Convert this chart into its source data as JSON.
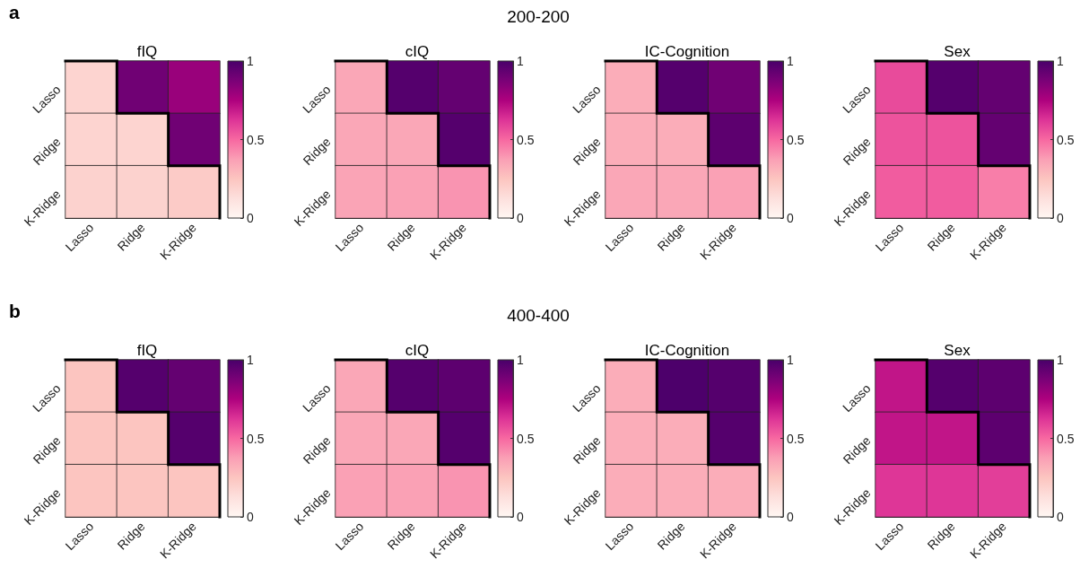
{
  "chart_data": [
    {
      "type": "heatmap",
      "title": "fIQ",
      "annotations": [
        "a",
        "200-200"
      ],
      "categories": [
        "Lasso",
        "Ridge",
        "K-Ridge"
      ],
      "y_categories": [
        "Lasso",
        "Ridge",
        "K-Ridge"
      ],
      "cells": [
        [
          0.18,
          0.9,
          0.8
        ],
        [
          0.18,
          0.18,
          0.9
        ],
        [
          0.19,
          0.19,
          0.22
        ]
      ],
      "clim": [
        0,
        1
      ],
      "cticks": [
        0,
        0.5,
        1
      ]
    },
    {
      "type": "heatmap",
      "title": "cIQ",
      "categories": [
        "Lasso",
        "Ridge",
        "K-Ridge"
      ],
      "y_categories": [
        "Lasso",
        "Ridge",
        "K-Ridge"
      ],
      "cells": [
        [
          0.35,
          0.97,
          0.93
        ],
        [
          0.35,
          0.35,
          0.97
        ],
        [
          0.36,
          0.37,
          0.4
        ]
      ],
      "clim": [
        0,
        1
      ],
      "cticks": [
        0,
        0.5,
        1
      ]
    },
    {
      "type": "heatmap",
      "title": "IC-Cognition",
      "categories": [
        "Lasso",
        "Ridge",
        "K-Ridge"
      ],
      "y_categories": [
        "Lasso",
        "Ridge",
        "K-Ridge"
      ],
      "cells": [
        [
          0.33,
          0.97,
          0.9
        ],
        [
          0.33,
          0.33,
          0.95
        ],
        [
          0.35,
          0.35,
          0.37
        ]
      ],
      "clim": [
        0,
        1
      ],
      "cticks": [
        0,
        0.5,
        1
      ]
    },
    {
      "type": "heatmap",
      "title": "Sex",
      "categories": [
        "Lasso",
        "Ridge",
        "K-Ridge"
      ],
      "y_categories": [
        "Lasso",
        "Ridge",
        "K-Ridge"
      ],
      "cells": [
        [
          0.57,
          0.97,
          0.93
        ],
        [
          0.55,
          0.55,
          0.93
        ],
        [
          0.53,
          0.53,
          0.45
        ]
      ],
      "clim": [
        0,
        1
      ],
      "cticks": [
        0,
        0.5,
        1
      ]
    },
    {
      "type": "heatmap",
      "title": "fIQ",
      "annotations": [
        "b",
        "400-400"
      ],
      "categories": [
        "Lasso",
        "Ridge",
        "K-Ridge"
      ],
      "y_categories": [
        "Lasso",
        "Ridge",
        "K-Ridge"
      ],
      "cells": [
        [
          0.25,
          0.97,
          0.93
        ],
        [
          0.25,
          0.25,
          0.97
        ],
        [
          0.25,
          0.25,
          0.25
        ]
      ],
      "clim": [
        0,
        1
      ],
      "cticks": [
        0,
        0.5,
        1
      ]
    },
    {
      "type": "heatmap",
      "title": "cIQ",
      "categories": [
        "Lasso",
        "Ridge",
        "K-Ridge"
      ],
      "y_categories": [
        "Lasso",
        "Ridge",
        "K-Ridge"
      ],
      "cells": [
        [
          0.35,
          0.97,
          0.95
        ],
        [
          0.35,
          0.35,
          0.97
        ],
        [
          0.37,
          0.37,
          0.4
        ]
      ],
      "clim": [
        0,
        1
      ],
      "cticks": [
        0,
        0.5,
        1
      ]
    },
    {
      "type": "heatmap",
      "title": "IC-Cognition",
      "categories": [
        "Lasso",
        "Ridge",
        "K-Ridge"
      ],
      "y_categories": [
        "Lasso",
        "Ridge",
        "K-Ridge"
      ],
      "cells": [
        [
          0.33,
          0.99,
          0.97
        ],
        [
          0.33,
          0.33,
          0.97
        ],
        [
          0.33,
          0.33,
          0.33
        ]
      ],
      "clim": [
        0,
        1
      ],
      "cticks": [
        0,
        0.5,
        1
      ]
    },
    {
      "type": "heatmap",
      "title": "Sex",
      "categories": [
        "Lasso",
        "Ridge",
        "K-Ridge"
      ],
      "y_categories": [
        "Lasso",
        "Ridge",
        "K-Ridge"
      ],
      "cells": [
        [
          0.7,
          0.97,
          0.95
        ],
        [
          0.7,
          0.7,
          0.95
        ],
        [
          0.62,
          0.62,
          0.6
        ]
      ],
      "clim": [
        0,
        1
      ],
      "cticks": [
        0,
        0.5,
        1
      ]
    }
  ]
}
